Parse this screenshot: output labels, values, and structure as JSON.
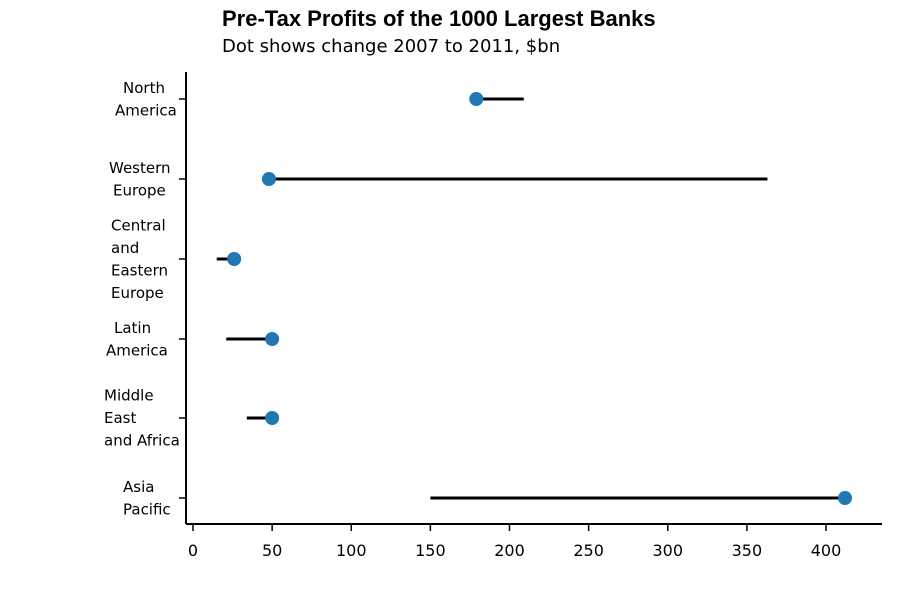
{
  "chart_data": {
    "type": "dumbbell",
    "title": "Pre-Tax Profits of the 1000 Largest Banks",
    "subtitle": "Dot shows change 2007 to 2011, $bn",
    "xlim": [
      -3,
      432
    ],
    "xticks": [
      0,
      50,
      100,
      150,
      200,
      250,
      300,
      350,
      400
    ],
    "dot_color": "#1f77b4",
    "line_color": "#000000",
    "categories": [
      {
        "label_lines": [
          "North",
          "America"
        ],
        "start_2007": 209,
        "end_2011": 179
      },
      {
        "label_lines": [
          "Western",
          "Europe"
        ],
        "start_2007": 363,
        "end_2011": 48
      },
      {
        "label_lines": [
          "Central",
          "and",
          "Eastern",
          "Europe"
        ],
        "start_2007": 15,
        "end_2011": 26
      },
      {
        "label_lines": [
          "Latin",
          "America"
        ],
        "start_2007": 21,
        "end_2011": 50
      },
      {
        "label_lines": [
          "Middle",
          "East",
          "and Africa"
        ],
        "start_2007": 34,
        "end_2011": 50
      },
      {
        "label_lines": [
          "Asia",
          "Pacific"
        ],
        "start_2007": 150,
        "end_2011": 412
      }
    ]
  }
}
